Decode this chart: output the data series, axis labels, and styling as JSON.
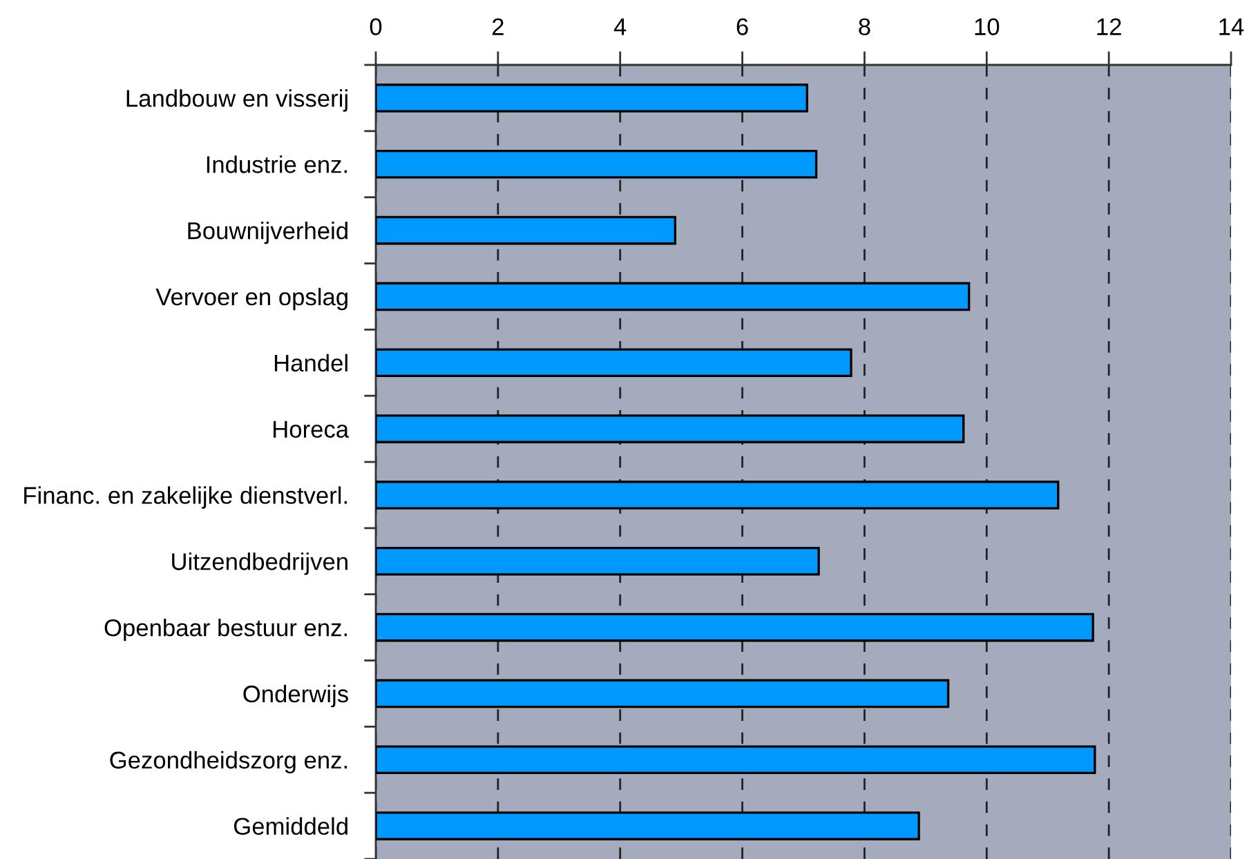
{
  "chart_data": {
    "type": "bar",
    "orientation": "horizontal",
    "categories": [
      "Landbouw en visserij",
      "Industrie enz.",
      "Bouwnijverheid",
      "Vervoer en opslag",
      "Handel",
      "Horeca",
      "Financ. en zakelijke dienstverl.",
      "Uitzendbedrijven",
      "Openbaar bestuur enz.",
      "Onderwijs",
      "Gezondheidszorg enz.",
      "Gemiddeld"
    ],
    "values": [
      7.06,
      7.21,
      4.9,
      9.71,
      7.78,
      9.62,
      11.17,
      7.25,
      11.74,
      9.37,
      11.77,
      8.89
    ],
    "color": "#0099ff",
    "xlim": [
      0,
      14
    ],
    "xticks": [
      0,
      2,
      4,
      6,
      8,
      10,
      12,
      14
    ],
    "grid": "x"
  }
}
